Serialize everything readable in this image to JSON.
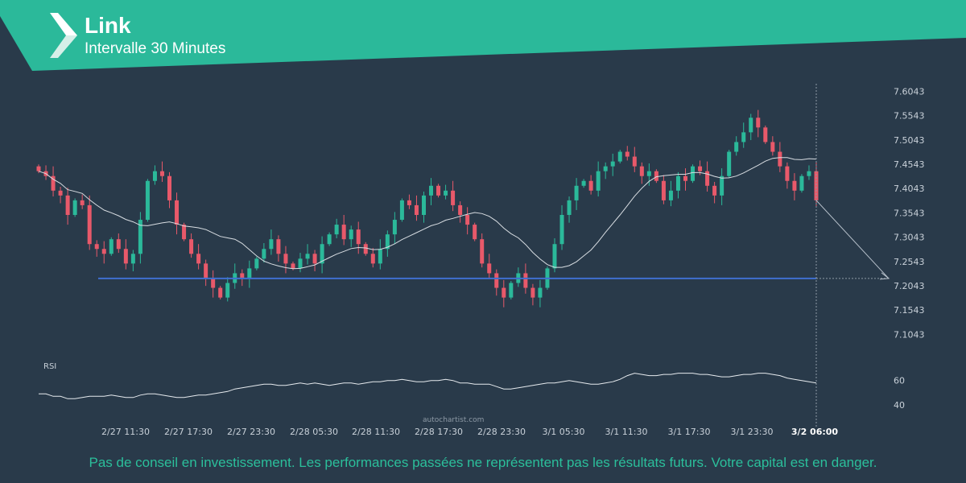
{
  "header": {
    "title": "Link",
    "subtitle": "Intervalle 30 Minutes",
    "banner_color": "#2bb99a"
  },
  "chart_data": {
    "type": "candlestick",
    "y_ticks": [
      "7.6043",
      "7.5543",
      "7.5043",
      "7.4543",
      "7.4043",
      "7.3543",
      "7.3043",
      "7.2543",
      "7.2043",
      "7.1543",
      "7.1043"
    ],
    "ylim": [
      7.08,
      7.62
    ],
    "x_ticks": [
      "2/27 11:30",
      "2/27 17:30",
      "2/27 23:30",
      "2/28 05:30",
      "2/28 11:30",
      "2/28 17:30",
      "2/28 23:30",
      "3/1 05:30",
      "3/1 11:30",
      "3/1 17:30",
      "3/1 23:30"
    ],
    "current_time_label": "3/2 06:00",
    "close_prices": [
      7.44,
      7.43,
      7.4,
      7.39,
      7.35,
      7.38,
      7.37,
      7.29,
      7.28,
      7.27,
      7.3,
      7.28,
      7.25,
      7.27,
      7.34,
      7.42,
      7.44,
      7.43,
      7.38,
      7.33,
      7.3,
      7.27,
      7.25,
      7.22,
      7.2,
      7.18,
      7.21,
      7.23,
      7.22,
      7.24,
      7.26,
      7.28,
      7.3,
      7.27,
      7.25,
      7.24,
      7.26,
      7.27,
      7.25,
      7.29,
      7.31,
      7.33,
      7.3,
      7.32,
      7.29,
      7.27,
      7.25,
      7.28,
      7.31,
      7.34,
      7.38,
      7.37,
      7.35,
      7.39,
      7.41,
      7.39,
      7.4,
      7.37,
      7.35,
      7.33,
      7.3,
      7.25,
      7.23,
      7.2,
      7.18,
      7.21,
      7.23,
      7.2,
      7.18,
      7.2,
      7.24,
      7.29,
      7.35,
      7.38,
      7.41,
      7.42,
      7.4,
      7.44,
      7.45,
      7.46,
      7.48,
      7.47,
      7.45,
      7.43,
      7.44,
      7.42,
      7.38,
      7.4,
      7.43,
      7.42,
      7.45,
      7.44,
      7.41,
      7.39,
      7.43,
      7.48,
      7.5,
      7.52,
      7.55,
      7.53,
      7.5,
      7.48,
      7.45,
      7.42,
      7.4,
      7.43,
      7.44,
      7.38
    ],
    "ma_line": "white moving average",
    "support_level": 7.2193,
    "support_color": "#3f6fd0",
    "forecast_target": 7.2193,
    "rsi": {
      "label": "RSI",
      "ticks": [
        "60",
        "40"
      ],
      "ylim": [
        30,
        75
      ],
      "values": [
        49,
        49,
        47,
        47,
        45,
        45,
        46,
        47,
        47,
        47,
        48,
        47,
        46,
        46,
        48,
        49,
        49,
        48,
        47,
        46,
        46,
        47,
        48,
        48,
        49,
        50,
        51,
        53,
        54,
        55,
        56,
        57,
        57,
        56,
        56,
        57,
        58,
        57,
        58,
        57,
        56,
        57,
        58,
        58,
        57,
        58,
        59,
        59,
        60,
        60,
        61,
        60,
        59,
        59,
        60,
        60,
        61,
        60,
        58,
        58,
        57,
        57,
        57,
        55,
        53,
        53,
        54,
        55,
        56,
        57,
        58,
        58,
        59,
        60,
        59,
        58,
        57,
        57,
        58,
        59,
        61,
        64,
        66,
        65,
        64,
        64,
        65,
        65,
        66,
        66,
        66,
        65,
        65,
        64,
        63,
        63,
        64,
        65,
        65,
        66,
        66,
        65,
        64,
        62,
        61,
        60,
        59,
        58
      ]
    },
    "watermark": "autochartist.com"
  },
  "footer": {
    "disclaimer": "Pas de conseil en investissement. Les performances passées ne représentent pas les résultats futurs. Votre capital est en danger.",
    "color": "#2bbf9b"
  },
  "colors": {
    "background": "#293a4a",
    "bull": "#2bb99a",
    "bear": "#e8596a",
    "ma": "#d8dde2",
    "axis_text": "#c9d1d9"
  }
}
